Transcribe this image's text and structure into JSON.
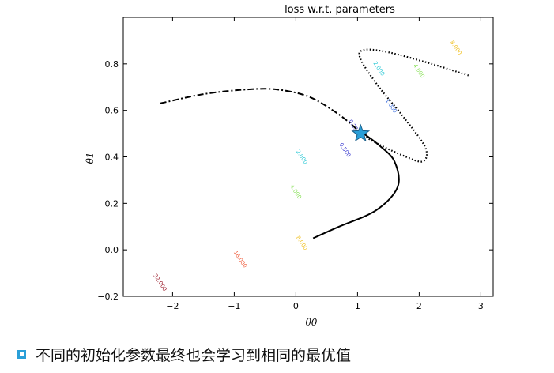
{
  "chart_data": {
    "type": "contour",
    "title": "loss w.r.t. parameters",
    "xlabel": "θ0",
    "ylabel": "θ1",
    "xlim": [
      -2.8,
      3.2
    ],
    "ylim": [
      -0.2,
      1.0
    ],
    "xticks": [
      -2,
      -1,
      0,
      1,
      2,
      3
    ],
    "yticks": [
      -0.2,
      0.0,
      0.2,
      0.4,
      0.6,
      0.8
    ],
    "xtick_labels": [
      "−2",
      "−1",
      "0",
      "1",
      "2",
      "3"
    ],
    "ytick_labels": [
      "−0.2",
      "0.0",
      "0.2",
      "0.4",
      "0.6",
      "0.8"
    ],
    "grid": false,
    "optimum": {
      "x": 1.05,
      "y": 0.5,
      "marker": "star",
      "color": "#2a9fd8"
    },
    "contour_levels": [
      {
        "level": 0.25,
        "label": "0.250",
        "color": "#3a3ad0",
        "label_at": [
          0.95,
          0.53
        ]
      },
      {
        "level": 0.5,
        "label": "0.500",
        "color": "#3a3ad0",
        "label_at": [
          0.8,
          0.43
        ]
      },
      {
        "level": 1.0,
        "label": "1.000",
        "color": "#3a6ee0",
        "label_at": [
          1.55,
          0.62
        ]
      },
      {
        "level": 2.0,
        "label": "2.000",
        "color": "#2ec9d6",
        "label_at": [
          0.1,
          0.4
        ]
      },
      {
        "level": 2.0,
        "label": "2.000",
        "color": "#2ec9d6",
        "label_at": [
          1.35,
          0.78
        ]
      },
      {
        "level": 4.0,
        "label": "4.000",
        "color": "#8ae05a",
        "label_at": [
          0.0,
          0.25
        ]
      },
      {
        "level": 4.0,
        "label": "4.000",
        "color": "#8ae05a",
        "label_at": [
          2.0,
          0.77
        ]
      },
      {
        "level": 8.0,
        "label": "8.000",
        "color": "#f0c020",
        "label_at": [
          0.1,
          0.03
        ]
      },
      {
        "level": 8.0,
        "label": "8.000",
        "color": "#f0c020",
        "label_at": [
          2.6,
          0.87
        ]
      },
      {
        "level": 16.0,
        "label": "16.000",
        "color": "#f06040",
        "label_at": [
          -0.9,
          -0.04
        ]
      },
      {
        "level": 32.0,
        "label": "32.000",
        "color": "#9a1a2a",
        "label_at": [
          -2.2,
          -0.14
        ]
      }
    ],
    "trajectories": [
      {
        "style": "solid",
        "color": "#000000",
        "points": [
          [
            0.28,
            0.05
          ],
          [
            0.7,
            0.1
          ],
          [
            1.3,
            0.17
          ],
          [
            1.65,
            0.27
          ],
          [
            1.6,
            0.38
          ],
          [
            1.35,
            0.45
          ],
          [
            1.1,
            0.5
          ]
        ]
      },
      {
        "style": "dashdot",
        "color": "#000000",
        "points": [
          [
            -2.2,
            0.63
          ],
          [
            -1.5,
            0.67
          ],
          [
            -0.8,
            0.69
          ],
          [
            -0.3,
            0.69
          ],
          [
            0.2,
            0.66
          ],
          [
            0.6,
            0.6
          ],
          [
            0.9,
            0.54
          ],
          [
            1.05,
            0.5
          ]
        ]
      },
      {
        "style": "dotted",
        "color": "#000000",
        "points": [
          [
            2.8,
            0.75
          ],
          [
            2.2,
            0.8
          ],
          [
            1.5,
            0.85
          ],
          [
            1.1,
            0.86
          ],
          [
            1.05,
            0.82
          ],
          [
            1.35,
            0.7
          ],
          [
            1.75,
            0.57
          ],
          [
            2.1,
            0.44
          ],
          [
            2.05,
            0.38
          ],
          [
            1.7,
            0.41
          ],
          [
            1.3,
            0.46
          ],
          [
            1.05,
            0.5
          ]
        ]
      }
    ]
  },
  "caption": {
    "text": "不同的初始化参数最终也会学习到相同的最优值"
  }
}
